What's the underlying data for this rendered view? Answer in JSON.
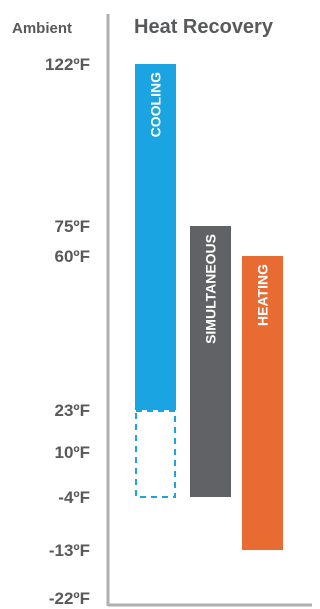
{
  "header": {
    "left_label": "Ambient",
    "title": "Heat Recovery"
  },
  "chart_data": {
    "type": "bar",
    "subtype": "floating-range",
    "title": "Heat Recovery",
    "y_axis_title": "Ambient",
    "y_ticks": [
      {
        "value": 122,
        "label": "122ºF"
      },
      {
        "value": 75,
        "label": "75ºF"
      },
      {
        "value": 60,
        "label": "60ºF"
      },
      {
        "value": 23,
        "label": "23ºF"
      },
      {
        "value": 10,
        "label": "10ºF"
      },
      {
        "value": -4,
        "label": "-4ºF"
      },
      {
        "value": -13,
        "label": "-13ºF"
      },
      {
        "value": -22,
        "label": "-22ºF"
      }
    ],
    "ylim": [
      -22,
      122
    ],
    "grid": false,
    "series": [
      {
        "name": "COOLING",
        "low": 23,
        "high": 122,
        "extended_low": -4,
        "color": "#1ba4e2"
      },
      {
        "name": "SIMULTANEOUS",
        "low": -4,
        "high": 75,
        "color": "#616265"
      },
      {
        "name": "HEATING",
        "low": -13,
        "high": 60,
        "color": "#e86b32"
      }
    ],
    "axis_color": "#b0b0b0",
    "text_color": "#58595b"
  }
}
